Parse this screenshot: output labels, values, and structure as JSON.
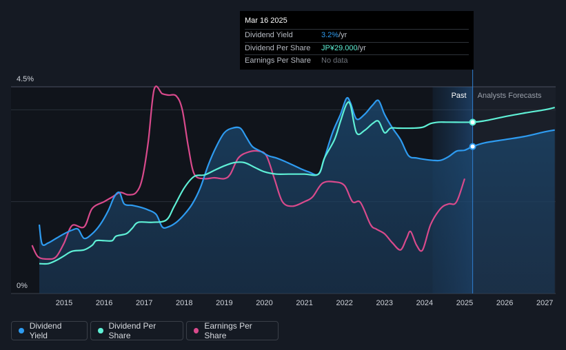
{
  "tooltip": {
    "date": "Mar 16 2025",
    "rows": [
      {
        "label": "Dividend Yield",
        "value": "3.2%",
        "unit": " /yr"
      },
      {
        "label": "Dividend Per Share",
        "value": "JP¥29.000",
        "unit": " /yr"
      },
      {
        "label": "Earnings Per Share",
        "value": "No data",
        "unit": ""
      }
    ]
  },
  "legend": {
    "items": [
      {
        "label": "Dividend Yield",
        "color": "#2e9bf0"
      },
      {
        "label": "Dividend Per Share",
        "color": "#5ff0d6"
      },
      {
        "label": "Earnings Per Share",
        "color": "#d94a8c"
      }
    ]
  },
  "chart_data": {
    "type": "line",
    "y_tick_labels": [
      "4.5%",
      "0%"
    ],
    "ylim": [
      0,
      4.5
    ],
    "xlim": [
      2014.0,
      2027.25
    ],
    "x_tick_labels": [
      "2015",
      "2016",
      "2017",
      "2018",
      "2019",
      "2020",
      "2021",
      "2022",
      "2023",
      "2024",
      "2025",
      "2026",
      "2027"
    ],
    "past_label": "Past",
    "forecast_label": "Analysts Forecasts",
    "forecast_start": 2025.2,
    "past_shade_start": 2024.2,
    "grid": true,
    "series": [
      {
        "name": "Dividend Yield",
        "color": "#2e9bf0",
        "x": [
          2014.38,
          2014.45,
          2014.6,
          2014.8,
          2015.0,
          2015.2,
          2015.35,
          2015.5,
          2015.7,
          2015.9,
          2016.1,
          2016.25,
          2016.38,
          2016.5,
          2016.7,
          2016.9,
          2017.1,
          2017.3,
          2017.45,
          2017.6,
          2017.8,
          2018.0,
          2018.2,
          2018.4,
          2018.6,
          2018.8,
          2019.0,
          2019.2,
          2019.4,
          2019.55,
          2019.7,
          2019.9,
          2020.1,
          2020.3,
          2020.5,
          2020.7,
          2020.9,
          2021.1,
          2021.35,
          2021.5,
          2021.7,
          2021.9,
          2022.05,
          2022.15,
          2022.3,
          2022.5,
          2022.7,
          2022.85,
          2023.0,
          2023.2,
          2023.4,
          2023.6,
          2023.8,
          2024.0,
          2024.2,
          2024.4,
          2024.6,
          2024.8,
          2025.0,
          2025.2,
          2025.5,
          2026.0,
          2026.5,
          2027.0,
          2027.25
        ],
        "y": [
          1.5,
          1.08,
          1.1,
          1.2,
          1.3,
          1.38,
          1.4,
          1.2,
          1.3,
          1.5,
          1.8,
          2.1,
          2.2,
          1.95,
          1.92,
          1.88,
          1.82,
          1.72,
          1.45,
          1.45,
          1.55,
          1.72,
          1.95,
          2.3,
          2.8,
          3.2,
          3.5,
          3.6,
          3.6,
          3.4,
          3.2,
          3.1,
          3.0,
          2.95,
          2.88,
          2.8,
          2.72,
          2.65,
          2.6,
          2.95,
          3.5,
          3.9,
          4.25,
          4.15,
          3.8,
          3.9,
          4.1,
          4.2,
          3.9,
          3.6,
          3.35,
          3.0,
          2.95,
          2.92,
          2.9,
          2.9,
          2.98,
          3.1,
          3.12,
          3.2,
          3.28,
          3.35,
          3.42,
          3.52,
          3.56
        ]
      },
      {
        "name": "Dividend Per Share",
        "color": "#5ff0d6",
        "x": [
          2014.38,
          2014.6,
          2014.8,
          2015.0,
          2015.2,
          2015.5,
          2015.7,
          2015.8,
          2016.0,
          2016.2,
          2016.3,
          2016.55,
          2016.7,
          2016.85,
          2017.2,
          2017.55,
          2017.75,
          2018.0,
          2018.25,
          2018.5,
          2018.75,
          2019.0,
          2019.25,
          2019.5,
          2019.75,
          2020.0,
          2020.3,
          2020.6,
          2021.0,
          2021.35,
          2021.5,
          2021.75,
          2021.9,
          2022.05,
          2022.15,
          2022.3,
          2022.5,
          2022.7,
          2022.85,
          2023.0,
          2023.15,
          2023.35,
          2023.7,
          2023.95,
          2024.15,
          2024.35,
          2024.6,
          2025.2,
          2025.5,
          2026.0,
          2026.5,
          2027.0,
          2027.25
        ],
        "y": [
          0.65,
          0.65,
          0.72,
          0.82,
          0.92,
          0.95,
          1.05,
          1.15,
          1.15,
          1.15,
          1.25,
          1.3,
          1.42,
          1.55,
          1.55,
          1.6,
          1.9,
          2.3,
          2.55,
          2.58,
          2.68,
          2.78,
          2.85,
          2.85,
          2.75,
          2.65,
          2.6,
          2.6,
          2.6,
          2.6,
          2.95,
          3.35,
          3.75,
          4.12,
          4.1,
          3.5,
          3.55,
          3.7,
          3.75,
          3.5,
          3.6,
          3.6,
          3.6,
          3.62,
          3.7,
          3.73,
          3.73,
          3.73,
          3.76,
          3.85,
          3.93,
          4.0,
          4.05
        ]
      },
      {
        "name": "Earnings Per Share",
        "color": "#d94a8c",
        "x": [
          2014.2,
          2014.35,
          2014.6,
          2014.8,
          2015.0,
          2015.2,
          2015.5,
          2015.7,
          2016.0,
          2016.2,
          2016.4,
          2016.6,
          2016.8,
          2016.95,
          2017.1,
          2017.25,
          2017.45,
          2017.6,
          2017.8,
          2017.95,
          2018.1,
          2018.25,
          2018.5,
          2018.75,
          2019.0,
          2019.15,
          2019.35,
          2019.6,
          2019.85,
          2020.05,
          2020.25,
          2020.45,
          2020.7,
          2021.0,
          2021.2,
          2021.45,
          2021.75,
          2022.0,
          2022.2,
          2022.4,
          2022.65,
          2022.8,
          2023.0,
          2023.2,
          2023.4,
          2023.55,
          2023.65,
          2023.8,
          2023.95,
          2024.15,
          2024.4,
          2024.6,
          2024.75,
          2024.85,
          2025.0
        ],
        "y": [
          1.05,
          0.8,
          0.75,
          0.8,
          1.1,
          1.48,
          1.45,
          1.85,
          2.0,
          2.1,
          2.2,
          2.15,
          2.2,
          2.5,
          3.3,
          4.45,
          4.35,
          4.32,
          4.3,
          4.0,
          3.2,
          2.6,
          2.5,
          2.52,
          2.5,
          2.6,
          2.95,
          3.08,
          3.1,
          3.0,
          2.5,
          2.0,
          1.9,
          2.0,
          2.1,
          2.4,
          2.43,
          2.35,
          2.0,
          1.98,
          1.5,
          1.4,
          1.3,
          1.1,
          0.95,
          1.2,
          1.35,
          1.05,
          0.95,
          1.5,
          1.85,
          1.95,
          1.95,
          2.1,
          2.5
        ]
      }
    ]
  }
}
